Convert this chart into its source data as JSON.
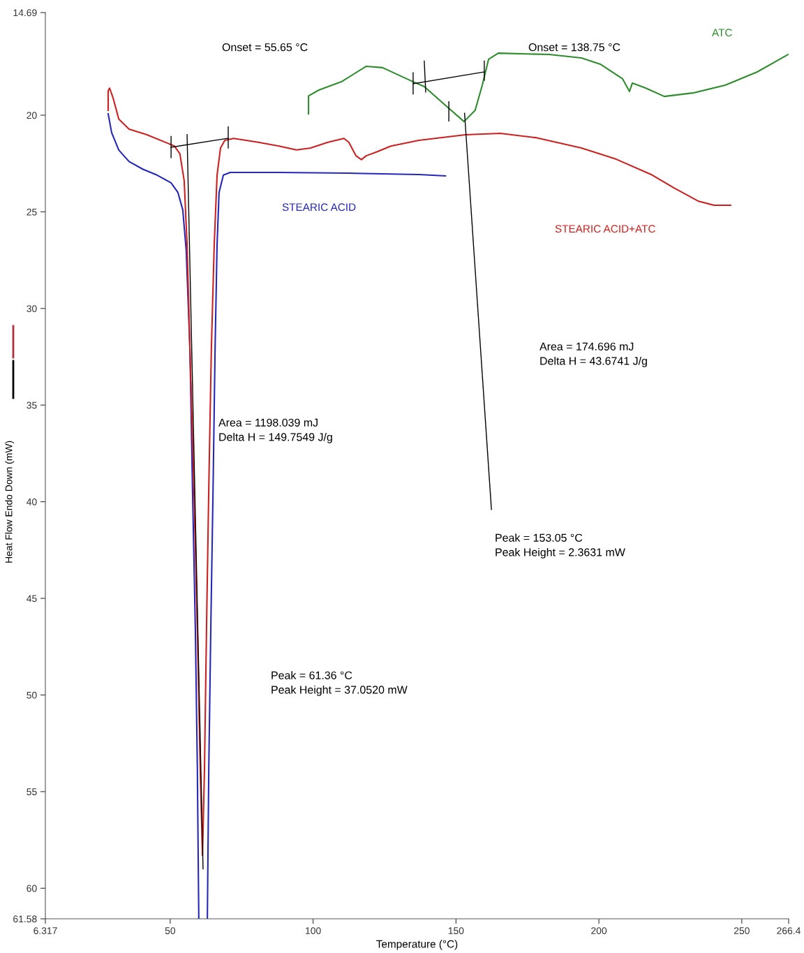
{
  "chart_data": {
    "type": "line",
    "xlabel": "Temperature (°C)",
    "ylabel": "Heat Flow Endo Down (mW)",
    "xlim": [
      6.317,
      266.4
    ],
    "xticks": [
      6.317,
      50,
      100,
      150,
      200,
      250,
      266.4
    ],
    "ylim": [
      61.58,
      14.69
    ],
    "yticks": [
      14.69,
      20,
      25,
      30,
      35,
      40,
      45,
      50,
      55,
      60,
      61.58
    ],
    "grid": false,
    "legend": false,
    "marker": "none",
    "line_style": "solid",
    "annotations": [
      "Onset = 55.65 °C",
      "Onset = 138.75 °C",
      "Area = 1198.039 mJ\nDelta H = 149.7549 J/g",
      "Peak = 61.36 °C\nPeak Height = 37.0520 mW",
      "Area = 174.696 mJ\nDelta H = 43.6741 J/g",
      "Peak = 153.05 °C\nPeak Height = 2.3631 mW"
    ],
    "series": [
      {
        "name": "STEARIC ACID",
        "color": "#2626b8",
        "x": [
          28.3,
          29.5,
          32,
          35.6,
          40.5,
          45.4,
          50.3,
          52.7,
          54.4,
          55.6,
          56.9,
          57.8,
          58.8,
          59.5,
          60.0,
          61.5,
          63.0,
          63.5,
          64.2,
          65.0,
          65.7,
          66.4,
          67.1,
          68.6,
          71.0,
          88.1,
          112.5,
          137,
          146.3
        ],
        "values": [
          19.93,
          20.9,
          21.8,
          22.4,
          22.8,
          23.1,
          23.5,
          24.0,
          24.9,
          27.0,
          32.1,
          39.3,
          46.6,
          53.8,
          61.58,
          null,
          61.58,
          53.8,
          46.6,
          39.3,
          32.1,
          26.7,
          24.0,
          23.1,
          22.96,
          22.96,
          23.0,
          23.07,
          23.14
        ]
      },
      {
        "name": "STEARIC ACID+ATC",
        "color": "#cc2020",
        "x": [
          28.3,
          28.3,
          28.8,
          30,
          32,
          35.6,
          41.7,
          49.1,
          51.5,
          53.4,
          54.9,
          55.9,
          56.9,
          58.3,
          59.5,
          60.5,
          61.3,
          62.0,
          62.7,
          63.5,
          64.4,
          65.4,
          66.4,
          67.6,
          69.1,
          72.2,
          80.8,
          88.1,
          94.2,
          99.1,
          105.2,
          110.8,
          112.5,
          115,
          116.9,
          118.6,
          122.3,
          127.2,
          137,
          153.3,
          165.5,
          177.8,
          193.9,
          206.1,
          218.3,
          226.6,
          234.7,
          240.3,
          246.1
        ],
        "values": [
          19.75,
          18.74,
          18.6,
          19.1,
          20.2,
          20.72,
          21.0,
          21.45,
          21.6,
          22.0,
          23.4,
          26.7,
          32.1,
          39.3,
          46.6,
          53.8,
          58.3,
          53.8,
          46.6,
          39.3,
          32.1,
          26.7,
          23.1,
          21.7,
          21.3,
          21.2,
          21.4,
          21.6,
          21.8,
          21.7,
          21.4,
          21.2,
          21.4,
          22.1,
          22.3,
          22.1,
          21.9,
          21.6,
          21.3,
          21.01,
          20.94,
          21.16,
          21.7,
          22.28,
          23.07,
          23.79,
          24.44,
          24.66,
          24.66
        ]
      },
      {
        "name": "ATC",
        "color": "#2e8b2e",
        "x": [
          98.4,
          98.4,
          102,
          109.9,
          118.6,
          124.3,
          135,
          138.9,
          145.8,
          152.8,
          156.7,
          159.2,
          161.4,
          164.8,
          182.6,
          193.9,
          200.5,
          208.3,
          210.7,
          211.7,
          216.3,
          222.9,
          232.9,
          244.2,
          255.4,
          266.2
        ],
        "values": [
          19.93,
          19.0,
          18.7,
          18.27,
          17.47,
          17.54,
          18.27,
          18.52,
          19.42,
          20.33,
          19.75,
          18.45,
          17.11,
          16.79,
          16.86,
          17.04,
          17.36,
          18.12,
          18.77,
          18.34,
          18.59,
          19.03,
          18.85,
          18.45,
          17.76,
          16.86
        ]
      },
      {
        "color": "#000000",
        "x": [
          50.3,
          70.3
        ],
        "values": [
          21.66,
          21.19
        ]
      },
      {
        "color": "#000000",
        "x": [
          50.3,
          50.3
        ],
        "values": [
          21.1,
          22.2
        ]
      },
      {
        "color": "#000000",
        "x": [
          70.3,
          70.3
        ],
        "values": [
          20.6,
          21.7
        ]
      },
      {
        "color": "#000000",
        "x": [
          55.9,
          61.5
        ],
        "values": [
          21.0,
          59.0
        ]
      },
      {
        "color": "#000000",
        "x": [
          135,
          159.9
        ],
        "values": [
          18.37,
          17.76
        ]
      },
      {
        "color": "#000000",
        "x": [
          135,
          135
        ],
        "values": [
          17.8,
          18.9
        ]
      },
      {
        "color": "#000000",
        "x": [
          138.9,
          139.4
        ],
        "values": [
          17.2,
          18.8
        ]
      },
      {
        "color": "#000000",
        "x": [
          159.9,
          159.9
        ],
        "values": [
          17.2,
          18.2
        ]
      },
      {
        "color": "#000000",
        "x": [
          147.5,
          147.5
        ],
        "values": [
          19.3,
          20.3
        ]
      },
      {
        "color": "#000000",
        "x": [
          153,
          162.4
        ],
        "values": [
          19.9,
          40.4
        ]
      }
    ]
  }
}
